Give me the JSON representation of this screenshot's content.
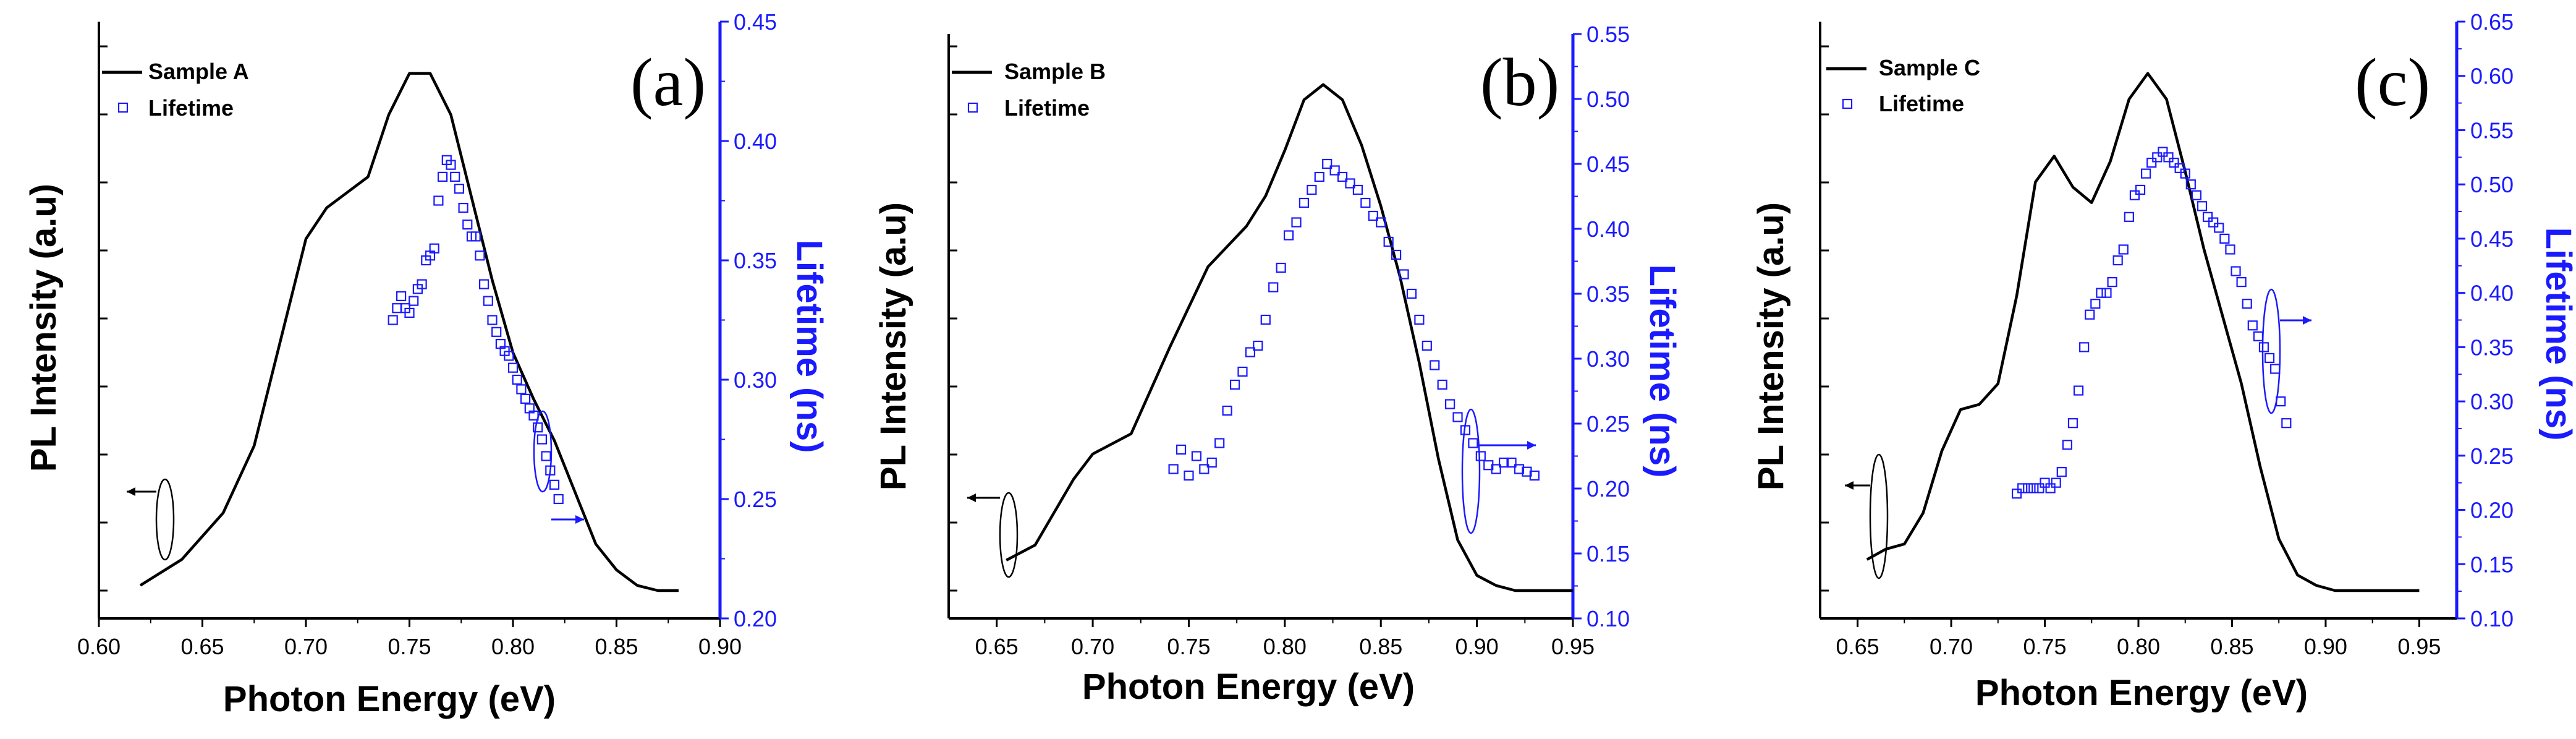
{
  "colors": {
    "pl_line": "#000000",
    "lifetime": "#1a1aff",
    "axis": "#000000"
  },
  "chart_data": [
    {
      "type": "line",
      "panel_label": "(a)",
      "xlabel": "Photon Energy (eV)",
      "ylabel_left": "PL Intensity (a.u)",
      "ylabel_right": "Lifetime (ns)",
      "xlim": [
        0.6,
        0.9
      ],
      "xticks": [
        "0.60",
        "0.65",
        "0.70",
        "0.75",
        "0.80",
        "0.85",
        "0.90"
      ],
      "ylim_right": [
        0.2,
        0.45
      ],
      "yticks_right": [
        "0.20",
        "0.25",
        "0.30",
        "0.35",
        "0.40",
        "0.45"
      ],
      "ylim_left": [
        0,
        1.1
      ],
      "legend": [
        "Sample A",
        "Lifetime"
      ],
      "series": [
        {
          "name": "Sample A",
          "axis": "left",
          "x": [
            0.62,
            0.64,
            0.66,
            0.675,
            0.69,
            0.7,
            0.71,
            0.72,
            0.73,
            0.74,
            0.75,
            0.76,
            0.77,
            0.78,
            0.79,
            0.8,
            0.81,
            0.82,
            0.83,
            0.84,
            0.85,
            0.86,
            0.87,
            0.88
          ],
          "y": [
            0.01,
            0.06,
            0.15,
            0.28,
            0.52,
            0.68,
            0.74,
            0.77,
            0.8,
            0.92,
            1.0,
            1.0,
            0.92,
            0.76,
            0.6,
            0.46,
            0.37,
            0.29,
            0.19,
            0.09,
            0.04,
            0.01,
            0.0,
            0.0
          ]
        },
        {
          "name": "Lifetime",
          "axis": "right",
          "x": [
            0.742,
            0.744,
            0.746,
            0.748,
            0.75,
            0.752,
            0.754,
            0.756,
            0.758,
            0.76,
            0.762,
            0.764,
            0.766,
            0.768,
            0.77,
            0.772,
            0.774,
            0.776,
            0.778,
            0.78,
            0.782,
            0.784,
            0.786,
            0.788,
            0.79,
            0.792,
            0.794,
            0.796,
            0.798,
            0.8,
            0.802,
            0.804,
            0.806,
            0.808,
            0.81,
            0.812,
            0.814,
            0.816,
            0.818,
            0.82,
            0.822
          ],
          "y": [
            0.325,
            0.33,
            0.335,
            0.33,
            0.328,
            0.333,
            0.338,
            0.34,
            0.35,
            0.352,
            0.355,
            0.375,
            0.385,
            0.392,
            0.39,
            0.385,
            0.38,
            0.372,
            0.365,
            0.36,
            0.36,
            0.352,
            0.34,
            0.333,
            0.325,
            0.32,
            0.315,
            0.312,
            0.31,
            0.305,
            0.3,
            0.296,
            0.292,
            0.288,
            0.285,
            0.28,
            0.275,
            0.268,
            0.262,
            0.256,
            0.25
          ]
        }
      ]
    },
    {
      "type": "line",
      "panel_label": "(b)",
      "xlabel": "Photon Energy (eV)",
      "ylabel_left": "PL Intensity (a.u)",
      "ylabel_right": "Lifetime (ns)",
      "xlim": [
        0.625,
        0.95
      ],
      "xticks": [
        "0.65",
        "0.70",
        "0.75",
        "0.80",
        "0.85",
        "0.90",
        "0.95"
      ],
      "ylim_right": [
        0.1,
        0.55
      ],
      "yticks_right": [
        "0.10",
        "0.15",
        "0.20",
        "0.25",
        "0.30",
        "0.35",
        "0.40",
        "0.45",
        "0.50",
        "0.55"
      ],
      "ylim_left": [
        0,
        1.1
      ],
      "legend": [
        "Sample B",
        "Lifetime"
      ],
      "series": [
        {
          "name": "Sample B",
          "axis": "left",
          "x": [
            0.655,
            0.67,
            0.69,
            0.7,
            0.72,
            0.74,
            0.76,
            0.78,
            0.79,
            0.8,
            0.81,
            0.82,
            0.83,
            0.84,
            0.85,
            0.86,
            0.87,
            0.88,
            0.89,
            0.9,
            0.91,
            0.92,
            0.95
          ],
          "y": [
            0.06,
            0.09,
            0.22,
            0.27,
            0.31,
            0.48,
            0.64,
            0.72,
            0.78,
            0.87,
            0.97,
            1.0,
            0.97,
            0.88,
            0.76,
            0.62,
            0.45,
            0.26,
            0.1,
            0.03,
            0.01,
            0.0,
            0.0
          ]
        },
        {
          "name": "Lifetime",
          "axis": "right",
          "x": [
            0.742,
            0.746,
            0.75,
            0.754,
            0.758,
            0.762,
            0.766,
            0.77,
            0.774,
            0.778,
            0.782,
            0.786,
            0.79,
            0.794,
            0.798,
            0.802,
            0.806,
            0.81,
            0.814,
            0.818,
            0.822,
            0.826,
            0.83,
            0.834,
            0.838,
            0.842,
            0.846,
            0.85,
            0.854,
            0.858,
            0.862,
            0.866,
            0.87,
            0.874,
            0.878,
            0.882,
            0.886,
            0.89,
            0.894,
            0.898,
            0.902,
            0.906,
            0.91,
            0.914,
            0.918,
            0.922,
            0.926,
            0.93
          ],
          "y": [
            0.215,
            0.23,
            0.21,
            0.225,
            0.215,
            0.22,
            0.235,
            0.26,
            0.28,
            0.29,
            0.305,
            0.31,
            0.33,
            0.355,
            0.37,
            0.395,
            0.405,
            0.42,
            0.43,
            0.44,
            0.45,
            0.445,
            0.44,
            0.435,
            0.43,
            0.42,
            0.41,
            0.405,
            0.39,
            0.38,
            0.365,
            0.35,
            0.33,
            0.31,
            0.295,
            0.28,
            0.265,
            0.255,
            0.245,
            0.235,
            0.225,
            0.218,
            0.215,
            0.22,
            0.22,
            0.215,
            0.213,
            0.21
          ]
        }
      ]
    },
    {
      "type": "line",
      "panel_label": "(c)",
      "xlabel": "Photon Energy (eV)",
      "ylabel_left": "PL Intensity (a.u)",
      "ylabel_right": "Lifetime (ns)",
      "xlim": [
        0.63,
        0.97
      ],
      "xticks": [
        "0.65",
        "0.70",
        "0.75",
        "0.80",
        "0.85",
        "0.90",
        "0.95"
      ],
      "ylim_right": [
        0.1,
        0.65
      ],
      "yticks_right": [
        "0.10",
        "0.15",
        "0.20",
        "0.25",
        "0.30",
        "0.35",
        "0.40",
        "0.45",
        "0.50",
        "0.55",
        "0.60",
        "0.65"
      ],
      "ylim_left": [
        0,
        1.1
      ],
      "legend": [
        "Sample C",
        "Lifetime"
      ],
      "series": [
        {
          "name": "Sample C",
          "axis": "left",
          "x": [
            0.655,
            0.665,
            0.675,
            0.685,
            0.695,
            0.705,
            0.715,
            0.725,
            0.735,
            0.745,
            0.755,
            0.765,
            0.775,
            0.785,
            0.795,
            0.805,
            0.815,
            0.825,
            0.835,
            0.845,
            0.855,
            0.865,
            0.875,
            0.885,
            0.895,
            0.905,
            0.95
          ],
          "y": [
            0.06,
            0.08,
            0.09,
            0.15,
            0.27,
            0.35,
            0.36,
            0.4,
            0.57,
            0.79,
            0.84,
            0.78,
            0.75,
            0.83,
            0.95,
            1.0,
            0.95,
            0.81,
            0.66,
            0.53,
            0.4,
            0.24,
            0.1,
            0.03,
            0.01,
            0.0,
            0.0
          ]
        },
        {
          "name": "Lifetime",
          "axis": "right",
          "x": [
            0.735,
            0.738,
            0.741,
            0.744,
            0.747,
            0.75,
            0.753,
            0.756,
            0.759,
            0.762,
            0.765,
            0.768,
            0.771,
            0.774,
            0.777,
            0.78,
            0.783,
            0.786,
            0.789,
            0.792,
            0.795,
            0.798,
            0.801,
            0.804,
            0.807,
            0.81,
            0.813,
            0.816,
            0.819,
            0.822,
            0.825,
            0.828,
            0.831,
            0.834,
            0.837,
            0.84,
            0.843,
            0.846,
            0.849,
            0.852,
            0.855,
            0.858,
            0.861,
            0.864,
            0.867,
            0.87,
            0.873,
            0.876,
            0.879
          ],
          "y": [
            0.215,
            0.22,
            0.22,
            0.22,
            0.22,
            0.225,
            0.22,
            0.225,
            0.235,
            0.26,
            0.28,
            0.31,
            0.35,
            0.38,
            0.39,
            0.4,
            0.4,
            0.41,
            0.43,
            0.44,
            0.47,
            0.49,
            0.495,
            0.51,
            0.52,
            0.525,
            0.53,
            0.525,
            0.52,
            0.515,
            0.51,
            0.5,
            0.49,
            0.48,
            0.47,
            0.465,
            0.46,
            0.45,
            0.44,
            0.42,
            0.41,
            0.39,
            0.37,
            0.36,
            0.35,
            0.34,
            0.33,
            0.3,
            0.28
          ]
        }
      ]
    }
  ]
}
